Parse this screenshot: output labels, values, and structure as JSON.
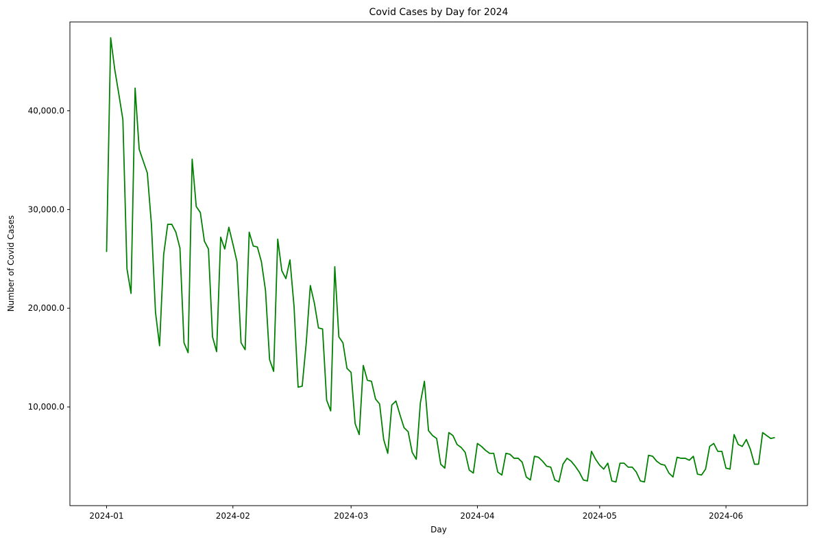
{
  "chart_data": {
    "type": "line",
    "title": "Covid Cases by Day for 2024",
    "xlabel": "Day",
    "ylabel": "Number of Covid Cases",
    "x_start": "2024-01-01",
    "x_ticks": [
      "2024-01",
      "2024-02",
      "2024-03",
      "2024-04",
      "2024-05",
      "2024-06"
    ],
    "y_ticks": [
      10000,
      20000,
      30000,
      40000
    ],
    "y_tick_labels": [
      "10,000.0",
      "20,000.0",
      "30,000.0",
      "40,000.0"
    ],
    "xlim": [
      "2023-12-23",
      "2024-06-21"
    ],
    "ylim": [
      0,
      49000
    ],
    "grid": false,
    "line_color": "#008000",
    "series": [
      {
        "values": [
          25700,
          47400,
          44200,
          41700,
          39100,
          24000,
          21500,
          42300,
          36100,
          34900,
          33700,
          28500,
          19600,
          16200,
          25400,
          28500,
          28500,
          27700,
          26100,
          16500,
          15500,
          35100,
          30300,
          29700,
          26800,
          26000,
          17100,
          15600,
          27200,
          26000,
          28200,
          26500,
          24700,
          16500,
          15800,
          27700,
          26300,
          26200,
          24700,
          21800,
          14800,
          13600,
          27000,
          23800,
          23000,
          24900,
          20200,
          12000,
          12100,
          16500,
          22300,
          20500,
          18000,
          17900,
          10700,
          9600,
          24200,
          17100,
          16500,
          13900,
          13500,
          8300,
          7200,
          14200,
          12700,
          12600,
          10800,
          10300,
          6700,
          5300,
          10200,
          10600,
          9200,
          7900,
          7500,
          5400,
          4700,
          10400,
          12600,
          7600,
          7100,
          6800,
          4200,
          3800,
          7400,
          7100,
          6200,
          5900,
          5400,
          3600,
          3300,
          6300,
          6000,
          5600,
          5300,
          5300,
          3400,
          3100,
          5300,
          5200,
          4800,
          4800,
          4400,
          2900,
          2600,
          5000,
          4900,
          4500,
          4000,
          3900,
          2600,
          2400,
          4200,
          4800,
          4500,
          4000,
          3400,
          2600,
          2500,
          5500,
          4700,
          4100,
          3700,
          4300,
          2500,
          2400,
          4300,
          4300,
          3900,
          3900,
          3400,
          2500,
          2400,
          5100,
          5000,
          4500,
          4200,
          4100,
          3300,
          2900,
          4900,
          4800,
          4800,
          4600,
          5000,
          3200,
          3100,
          3700,
          6000,
          6300,
          5500,
          5500,
          3800,
          3700,
          7200,
          6200,
          6000,
          6700,
          5700,
          4200,
          4200,
          7400,
          7100,
          6800,
          6900
        ]
      }
    ]
  }
}
